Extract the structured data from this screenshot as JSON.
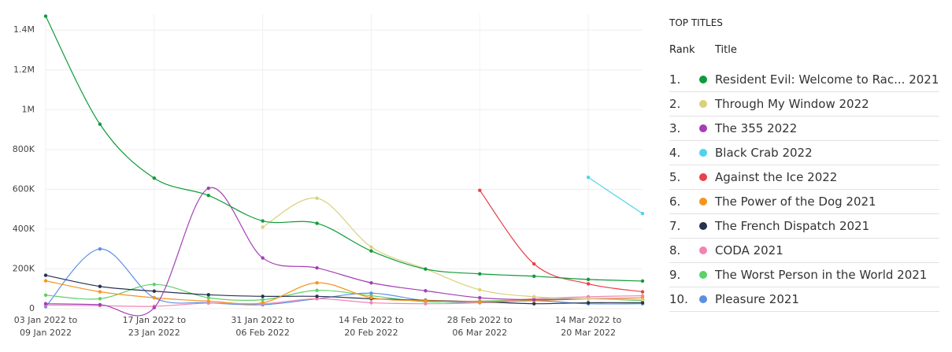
{
  "chart_data": {
    "type": "line",
    "categories": [
      "03 Jan 2022 to\n09 Jan 2022",
      null,
      "17 Jan 2022 to\n23 Jan 2022",
      null,
      "31 Jan 2022 to\n06 Feb 2022",
      null,
      "14 Feb 2022 to\n20 Feb 2022",
      null,
      "28 Feb 2022 to\n06 Mar 2022",
      null,
      "14 Mar 2022 to\n20 Mar 2022",
      null
    ],
    "ylim": [
      0,
      1480000
    ],
    "yticks": [
      {
        "value": 0,
        "label": "0"
      },
      {
        "value": 200000,
        "label": "200K"
      },
      {
        "value": 400000,
        "label": "400K"
      },
      {
        "value": 600000,
        "label": "600K"
      },
      {
        "value": 800000,
        "label": "800K"
      },
      {
        "value": 1000000,
        "label": "1M"
      },
      {
        "value": 1200000,
        "label": "1.2M"
      },
      {
        "value": 1400000,
        "label": "1.4M"
      }
    ],
    "grid": true,
    "legend_title": "TOP TITLES",
    "rank_header": "Rank",
    "title_header": "Title",
    "ranks": [
      "1.",
      "2.",
      "3.",
      "4.",
      "5.",
      "6.",
      "7.",
      "8.",
      "9.",
      "10."
    ],
    "series": [
      {
        "name": "Resident Evil: Welcome to Rac... 2021",
        "color": "#0f9b38",
        "values": [
          1470000,
          927000,
          656000,
          569000,
          441000,
          429000,
          290000,
          199000,
          175000,
          163000,
          147000,
          139000
        ]
      },
      {
        "name": "Through My Window 2022",
        "color": "#d8d27c",
        "values": [
          null,
          null,
          null,
          null,
          410000,
          555000,
          310000,
          200000,
          95000,
          60000,
          50000,
          45000
        ]
      },
      {
        "name": "The 355 2022",
        "color": "#a33fb5",
        "values": [
          25000,
          20000,
          5000,
          605000,
          255000,
          205000,
          130000,
          90000,
          55000,
          45000,
          50000,
          45000
        ]
      },
      {
        "name": "Black Crab 2022",
        "color": "#4fd3ea",
        "values": [
          null,
          null,
          null,
          null,
          null,
          null,
          null,
          null,
          null,
          null,
          660000,
          478000
        ]
      },
      {
        "name": "Against the Ice 2022",
        "color": "#e8414a",
        "values": [
          null,
          null,
          null,
          null,
          null,
          null,
          null,
          null,
          595000,
          225000,
          125000,
          85000
        ]
      },
      {
        "name": "The Power of the Dog 2021",
        "color": "#f5951f",
        "values": [
          140000,
          85000,
          55000,
          38000,
          30000,
          130000,
          55000,
          40000,
          35000,
          40000,
          50000,
          55000
        ]
      },
      {
        "name": "The French Dispatch 2021",
        "color": "#263250",
        "values": [
          168000,
          112000,
          88000,
          70000,
          62000,
          62000,
          50000,
          42000,
          35000,
          25000,
          30000,
          30000
        ]
      },
      {
        "name": "CODA 2021",
        "color": "#f284b4",
        "values": [
          18000,
          15000,
          12000,
          28000,
          25000,
          50000,
          30000,
          25000,
          30000,
          50000,
          60000,
          65000
        ]
      },
      {
        "name": "The Worst Person in the World 2021",
        "color": "#5ed06a",
        "values": [
          68000,
          50000,
          122000,
          55000,
          45000,
          92000,
          65000,
          35000,
          38000,
          45000,
          50000,
          40000
        ]
      },
      {
        "name": "Pleasure 2021",
        "color": "#5b8fe6",
        "values": [
          10000,
          300000,
          55000,
          30000,
          20000,
          50000,
          78000,
          40000,
          30000,
          40000,
          25000,
          25000
        ]
      }
    ]
  }
}
